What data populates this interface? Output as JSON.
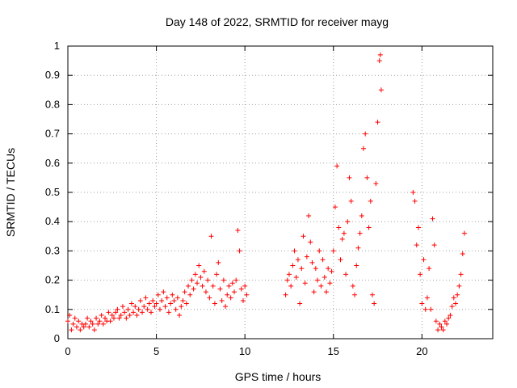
{
  "chart_data": {
    "type": "scatter",
    "title": "Day 148 of 2022, SRMTID for receiver mayg",
    "xlabel": "GPS time / hours",
    "ylabel": "SRMTID / TECUs",
    "xlim": [
      0,
      24
    ],
    "ylim": [
      0,
      1
    ],
    "x_ticks": [
      0,
      5,
      10,
      15,
      20
    ],
    "x_tick_labels": [
      "0",
      "5",
      "10",
      "15",
      "20"
    ],
    "y_ticks": [
      0,
      0.1,
      0.2,
      0.3,
      0.4,
      0.5,
      0.6,
      0.7,
      0.8,
      0.9,
      1
    ],
    "y_tick_labels": [
      "0",
      "0.1",
      "0.2",
      "0.3",
      "0.4",
      "0.5",
      "0.6",
      "0.7",
      "0.8",
      "0.9",
      "1"
    ],
    "grid": true,
    "marker": "+",
    "color": "#ff0000",
    "series": [
      {
        "name": "SRMTID",
        "points": [
          [
            0.0,
            0.06
          ],
          [
            0.1,
            0.08
          ],
          [
            0.2,
            0.03
          ],
          [
            0.3,
            0.05
          ],
          [
            0.4,
            0.07
          ],
          [
            0.5,
            0.04
          ],
          [
            0.6,
            0.06
          ],
          [
            0.7,
            0.03
          ],
          [
            0.8,
            0.05
          ],
          [
            0.9,
            0.04
          ],
          [
            1.0,
            0.05
          ],
          [
            1.1,
            0.07
          ],
          [
            1.2,
            0.04
          ],
          [
            1.3,
            0.06
          ],
          [
            1.4,
            0.05
          ],
          [
            1.5,
            0.03
          ],
          [
            1.6,
            0.07
          ],
          [
            1.7,
            0.05
          ],
          [
            1.8,
            0.06
          ],
          [
            1.9,
            0.08
          ],
          [
            2.0,
            0.05
          ],
          [
            2.1,
            0.07
          ],
          [
            2.2,
            0.06
          ],
          [
            2.3,
            0.09
          ],
          [
            2.4,
            0.06
          ],
          [
            2.5,
            0.08
          ],
          [
            2.6,
            0.07
          ],
          [
            2.7,
            0.09
          ],
          [
            2.8,
            0.1
          ],
          [
            2.9,
            0.07
          ],
          [
            3.0,
            0.08
          ],
          [
            3.1,
            0.11
          ],
          [
            3.2,
            0.09
          ],
          [
            3.3,
            0.07
          ],
          [
            3.4,
            0.1
          ],
          [
            3.5,
            0.08
          ],
          [
            3.6,
            0.12
          ],
          [
            3.7,
            0.09
          ],
          [
            3.8,
            0.11
          ],
          [
            3.9,
            0.08
          ],
          [
            4.0,
            0.1
          ],
          [
            4.1,
            0.13
          ],
          [
            4.2,
            0.09
          ],
          [
            4.3,
            0.11
          ],
          [
            4.4,
            0.14
          ],
          [
            4.5,
            0.1
          ],
          [
            4.6,
            0.12
          ],
          [
            4.7,
            0.09
          ],
          [
            4.8,
            0.13
          ],
          [
            4.9,
            0.11
          ],
          [
            5.0,
            0.12
          ],
          [
            5.1,
            0.15
          ],
          [
            5.2,
            0.1
          ],
          [
            5.3,
            0.13
          ],
          [
            5.4,
            0.16
          ],
          [
            5.5,
            0.11
          ],
          [
            5.6,
            0.14
          ],
          [
            5.7,
            0.09
          ],
          [
            5.8,
            0.12
          ],
          [
            5.9,
            0.15
          ],
          [
            6.0,
            0.13
          ],
          [
            6.1,
            0.1
          ],
          [
            6.2,
            0.14
          ],
          [
            6.3,
            0.08
          ],
          [
            6.4,
            0.11
          ],
          [
            6.5,
            0.13
          ],
          [
            6.6,
            0.16
          ],
          [
            6.7,
            0.12
          ],
          [
            6.8,
            0.18
          ],
          [
            6.9,
            0.15
          ],
          [
            7.0,
            0.2
          ],
          [
            7.1,
            0.17
          ],
          [
            7.2,
            0.22
          ],
          [
            7.3,
            0.19
          ],
          [
            7.4,
            0.25
          ],
          [
            7.5,
            0.21
          ],
          [
            7.6,
            0.18
          ],
          [
            7.7,
            0.23
          ],
          [
            7.8,
            0.16
          ],
          [
            7.9,
            0.2
          ],
          [
            8.0,
            0.14
          ],
          [
            8.1,
            0.35
          ],
          [
            8.2,
            0.18
          ],
          [
            8.3,
            0.12
          ],
          [
            8.4,
            0.22
          ],
          [
            8.5,
            0.26
          ],
          [
            8.6,
            0.17
          ],
          [
            8.7,
            0.13
          ],
          [
            8.8,
            0.2
          ],
          [
            8.9,
            0.11
          ],
          [
            9.0,
            0.15
          ],
          [
            9.1,
            0.18
          ],
          [
            9.2,
            0.14
          ],
          [
            9.3,
            0.19
          ],
          [
            9.4,
            0.16
          ],
          [
            9.5,
            0.2
          ],
          [
            9.6,
            0.37
          ],
          [
            9.7,
            0.3
          ],
          [
            9.8,
            0.17
          ],
          [
            9.9,
            0.13
          ],
          [
            10.0,
            0.18
          ],
          [
            10.1,
            0.15
          ],
          [
            12.3,
            0.15
          ],
          [
            12.4,
            0.2
          ],
          [
            12.5,
            0.22
          ],
          [
            12.6,
            0.18
          ],
          [
            12.7,
            0.25
          ],
          [
            12.8,
            0.3
          ],
          [
            12.9,
            0.21
          ],
          [
            13.0,
            0.27
          ],
          [
            13.1,
            0.12
          ],
          [
            13.2,
            0.24
          ],
          [
            13.3,
            0.35
          ],
          [
            13.4,
            0.19
          ],
          [
            13.5,
            0.28
          ],
          [
            13.6,
            0.42
          ],
          [
            13.7,
            0.33
          ],
          [
            13.8,
            0.26
          ],
          [
            13.9,
            0.16
          ],
          [
            14.0,
            0.24
          ],
          [
            14.1,
            0.2
          ],
          [
            14.2,
            0.3
          ],
          [
            14.3,
            0.18
          ],
          [
            14.4,
            0.27
          ],
          [
            14.5,
            0.21
          ],
          [
            14.6,
            0.16
          ],
          [
            14.7,
            0.24
          ],
          [
            14.8,
            0.19
          ],
          [
            14.9,
            0.23
          ],
          [
            15.0,
            0.3
          ],
          [
            15.1,
            0.45
          ],
          [
            15.2,
            0.59
          ],
          [
            15.3,
            0.38
          ],
          [
            15.4,
            0.27
          ],
          [
            15.5,
            0.34
          ],
          [
            15.6,
            0.36
          ],
          [
            15.7,
            0.22
          ],
          [
            15.8,
            0.4
          ],
          [
            15.9,
            0.55
          ],
          [
            16.0,
            0.47
          ],
          [
            16.1,
            0.18
          ],
          [
            16.2,
            0.15
          ],
          [
            16.3,
            0.25
          ],
          [
            16.4,
            0.31
          ],
          [
            16.5,
            0.36
          ],
          [
            16.6,
            0.42
          ],
          [
            16.7,
            0.65
          ],
          [
            16.8,
            0.7
          ],
          [
            16.9,
            0.55
          ],
          [
            17.0,
            0.38
          ],
          [
            17.1,
            0.47
          ],
          [
            17.2,
            0.15
          ],
          [
            17.3,
            0.12
          ],
          [
            17.4,
            0.53
          ],
          [
            17.5,
            0.74
          ],
          [
            17.6,
            0.95
          ],
          [
            17.65,
            0.97
          ],
          [
            17.7,
            0.85
          ],
          [
            19.5,
            0.5
          ],
          [
            19.6,
            0.47
          ],
          [
            19.7,
            0.32
          ],
          [
            19.8,
            0.38
          ],
          [
            19.9,
            0.22
          ],
          [
            20.0,
            0.12
          ],
          [
            20.1,
            0.27
          ],
          [
            20.2,
            0.1
          ],
          [
            20.3,
            0.14
          ],
          [
            20.4,
            0.24
          ],
          [
            20.5,
            0.1
          ],
          [
            20.6,
            0.41
          ],
          [
            20.7,
            0.32
          ],
          [
            20.8,
            0.06
          ],
          [
            20.9,
            0.03
          ],
          [
            21.0,
            0.05
          ],
          [
            21.1,
            0.04
          ],
          [
            21.2,
            0.03
          ],
          [
            21.3,
            0.06
          ],
          [
            21.4,
            0.05
          ],
          [
            21.5,
            0.07
          ],
          [
            21.6,
            0.08
          ],
          [
            21.7,
            0.11
          ],
          [
            21.8,
            0.14
          ],
          [
            21.9,
            0.12
          ],
          [
            22.0,
            0.15
          ],
          [
            22.1,
            0.18
          ],
          [
            22.2,
            0.22
          ],
          [
            22.3,
            0.29
          ],
          [
            22.4,
            0.36
          ]
        ]
      }
    ]
  }
}
